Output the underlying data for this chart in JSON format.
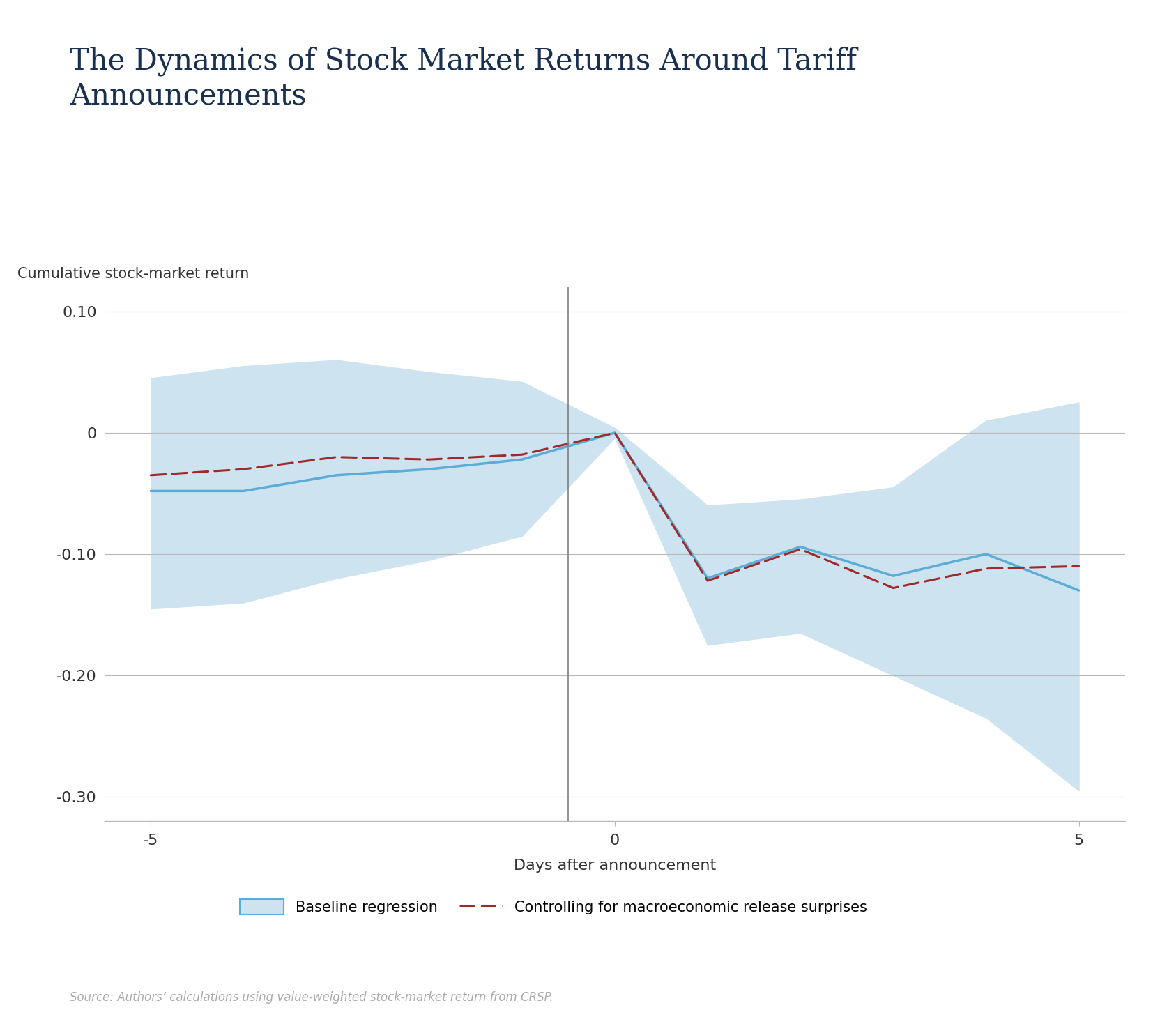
{
  "title": "The Dynamics of Stock Market Returns Around Tariff\nAnnouncements",
  "ylabel": "Cumulative stock-market return",
  "xlabel": "Days after announcement",
  "source": "Source: Authors’ calculations using value-weighted stock-market return from CRSP.",
  "title_color": "#1a3050",
  "title_fontsize": 30,
  "ylabel_fontsize": 15,
  "xlabel_fontsize": 16,
  "x": [
    -5,
    -4,
    -3,
    -2,
    -1,
    0,
    1,
    2,
    3,
    4,
    5
  ],
  "baseline_y": [
    -0.048,
    -0.048,
    -0.035,
    -0.03,
    -0.022,
    0.0,
    -0.12,
    -0.094,
    -0.118,
    -0.1,
    -0.13
  ],
  "baseline_upper": [
    0.045,
    0.055,
    0.06,
    0.05,
    0.042,
    0.004,
    -0.06,
    -0.055,
    -0.045,
    0.01,
    0.025
  ],
  "baseline_lower": [
    -0.145,
    -0.14,
    -0.12,
    -0.105,
    -0.085,
    -0.004,
    -0.175,
    -0.165,
    -0.2,
    -0.235,
    -0.295
  ],
  "control_y": [
    -0.035,
    -0.03,
    -0.02,
    -0.022,
    -0.018,
    0.0,
    -0.122,
    -0.096,
    -0.128,
    -0.112,
    -0.11
  ],
  "baseline_line_color": "#5bacd6",
  "baseline_fill_color": "#cde3f0",
  "control_line_color": "#9e2a2b",
  "ylim": [
    -0.32,
    0.12
  ],
  "yticks": [
    0.1,
    0.0,
    -0.1,
    -0.2,
    -0.3
  ],
  "xticks": [
    -5,
    0,
    5
  ],
  "vline_x": -0.5,
  "grid_color": "#b8b8b8",
  "legend_baseline_label": "Baseline regression",
  "legend_control_label": "Controlling for macroeconomic release surprises"
}
